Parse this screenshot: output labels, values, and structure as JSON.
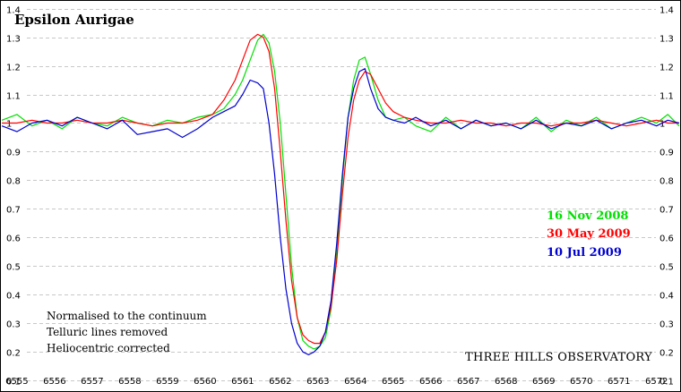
{
  "chart_data": {
    "type": "line",
    "title": "Epsilon Aurigae",
    "xlabel": "",
    "ylabel": "",
    "xlim": [
      6554.55,
      6572.65
    ],
    "ylim": [
      0.06,
      1.43
    ],
    "x_ticks": [
      6555,
      6556,
      6557,
      6558,
      6559,
      6560,
      6561,
      6562,
      6563,
      6564,
      6565,
      6566,
      6567,
      6568,
      6569,
      6570,
      6571,
      6572
    ],
    "y_ticks": [
      0.1,
      0.2,
      0.3,
      0.4,
      0.5,
      0.6,
      0.7,
      0.8,
      0.9,
      1.0,
      1.1,
      1.2,
      1.3,
      1.4
    ],
    "y_tick_labels": [
      "0.1",
      "0.2",
      "0.3",
      "0.4",
      "0.5",
      "0.6",
      "0.7",
      "0.8",
      "0.9",
      "1",
      "1.1",
      "1.2",
      "1.3",
      "1.4"
    ],
    "grid": "horizontal dashed",
    "legend_placement": "right",
    "annotations": [
      "Normalised to the continuum",
      "Telluric lines removed",
      "Heliocentric corrected"
    ],
    "credit": "THREE HILLS OBSERVATORY",
    "series": [
      {
        "name": "16 Nov 2008",
        "color": "#00e000",
        "x": [
          6554.6,
          6555.0,
          6555.4,
          6555.8,
          6556.2,
          6556.6,
          6557.0,
          6557.4,
          6557.8,
          6558.2,
          6558.6,
          6559.0,
          6559.4,
          6559.8,
          6560.2,
          6560.5,
          6560.8,
          6561.0,
          6561.2,
          6561.4,
          6561.55,
          6561.7,
          6561.85,
          6562.0,
          6562.15,
          6562.3,
          6562.45,
          6562.6,
          6562.75,
          6562.9,
          6563.05,
          6563.2,
          6563.35,
          6563.5,
          6563.65,
          6563.8,
          6563.95,
          6564.1,
          6564.25,
          6564.4,
          6564.6,
          6564.8,
          6565.0,
          6565.3,
          6565.6,
          6566.0,
          6566.4,
          6566.8,
          6567.2,
          6567.6,
          6568.0,
          6568.4,
          6568.8,
          6569.2,
          6569.6,
          6570.0,
          6570.4,
          6570.8,
          6571.2,
          6571.6,
          6572.0,
          6572.3,
          6572.6
        ],
        "y": [
          1.01,
          1.03,
          0.99,
          1.01,
          0.98,
          1.02,
          1.0,
          0.99,
          1.02,
          1.0,
          0.99,
          1.01,
          1.0,
          1.02,
          1.03,
          1.05,
          1.1,
          1.15,
          1.22,
          1.29,
          1.31,
          1.28,
          1.18,
          1.0,
          0.75,
          0.5,
          0.32,
          0.24,
          0.22,
          0.21,
          0.22,
          0.25,
          0.35,
          0.55,
          0.8,
          1.02,
          1.15,
          1.22,
          1.23,
          1.17,
          1.08,
          1.02,
          1.01,
          1.02,
          0.99,
          0.97,
          1.02,
          0.98,
          1.01,
          0.99,
          1.0,
          0.98,
          1.02,
          0.97,
          1.01,
          0.99,
          1.02,
          0.98,
          1.0,
          1.02,
          1.0,
          1.03,
          0.99
        ]
      },
      {
        "name": "30 May 2009",
        "color": "#ff0000",
        "x": [
          6554.6,
          6555.0,
          6555.4,
          6555.8,
          6556.2,
          6556.6,
          6557.0,
          6557.4,
          6557.8,
          6558.2,
          6558.6,
          6559.0,
          6559.4,
          6559.8,
          6560.2,
          6560.5,
          6560.8,
          6561.0,
          6561.2,
          6561.4,
          6561.55,
          6561.7,
          6561.85,
          6562.0,
          6562.15,
          6562.3,
          6562.45,
          6562.6,
          6562.75,
          6562.9,
          6563.05,
          6563.2,
          6563.35,
          6563.5,
          6563.65,
          6563.8,
          6563.95,
          6564.1,
          6564.25,
          6564.4,
          6564.6,
          6564.8,
          6565.0,
          6565.3,
          6565.6,
          6566.0,
          6566.4,
          6566.8,
          6567.2,
          6567.6,
          6568.0,
          6568.4,
          6568.8,
          6569.2,
          6569.6,
          6570.0,
          6570.4,
          6570.8,
          6571.2,
          6571.6,
          6572.0,
          6572.3,
          6572.6
        ],
        "y": [
          1.0,
          1.0,
          1.01,
          1.0,
          1.0,
          1.01,
          1.0,
          1.0,
          1.01,
          1.0,
          0.99,
          1.0,
          1.0,
          1.01,
          1.03,
          1.08,
          1.15,
          1.22,
          1.29,
          1.31,
          1.3,
          1.25,
          1.12,
          0.9,
          0.66,
          0.45,
          0.32,
          0.26,
          0.24,
          0.23,
          0.23,
          0.27,
          0.36,
          0.52,
          0.75,
          0.95,
          1.08,
          1.15,
          1.18,
          1.17,
          1.12,
          1.07,
          1.04,
          1.02,
          1.01,
          1.0,
          1.0,
          1.01,
          1.0,
          1.0,
          0.99,
          1.0,
          1.0,
          0.99,
          1.0,
          1.0,
          1.01,
          1.0,
          0.99,
          1.0,
          1.01,
          1.0,
          1.0
        ]
      },
      {
        "name": "10 Jul 2009",
        "color": "#0000d0",
        "x": [
          6554.6,
          6555.0,
          6555.4,
          6555.8,
          6556.2,
          6556.6,
          6557.0,
          6557.4,
          6557.8,
          6558.2,
          6558.6,
          6559.0,
          6559.4,
          6559.8,
          6560.2,
          6560.5,
          6560.8,
          6561.0,
          6561.2,
          6561.4,
          6561.55,
          6561.7,
          6561.85,
          6562.0,
          6562.15,
          6562.3,
          6562.45,
          6562.6,
          6562.75,
          6562.9,
          6563.05,
          6563.2,
          6563.35,
          6563.5,
          6563.65,
          6563.8,
          6563.95,
          6564.1,
          6564.25,
          6564.4,
          6564.6,
          6564.8,
          6565.0,
          6565.3,
          6565.6,
          6566.0,
          6566.4,
          6566.8,
          6567.2,
          6567.6,
          6568.0,
          6568.4,
          6568.8,
          6569.2,
          6569.6,
          6570.0,
          6570.4,
          6570.8,
          6571.2,
          6571.6,
          6572.0,
          6572.3,
          6572.6
        ],
        "y": [
          0.99,
          0.97,
          1.0,
          1.01,
          0.99,
          1.02,
          1.0,
          0.98,
          1.01,
          0.96,
          0.97,
          0.98,
          0.95,
          0.98,
          1.02,
          1.04,
          1.06,
          1.1,
          1.15,
          1.14,
          1.12,
          1.0,
          0.82,
          0.6,
          0.42,
          0.3,
          0.23,
          0.2,
          0.19,
          0.2,
          0.22,
          0.27,
          0.38,
          0.58,
          0.82,
          1.02,
          1.12,
          1.18,
          1.19,
          1.12,
          1.05,
          1.02,
          1.01,
          1.0,
          1.02,
          0.99,
          1.01,
          0.98,
          1.01,
          0.99,
          1.0,
          0.98,
          1.01,
          0.98,
          1.0,
          0.99,
          1.01,
          0.98,
          1.0,
          1.01,
          0.99,
          1.01,
          1.0
        ]
      }
    ]
  }
}
